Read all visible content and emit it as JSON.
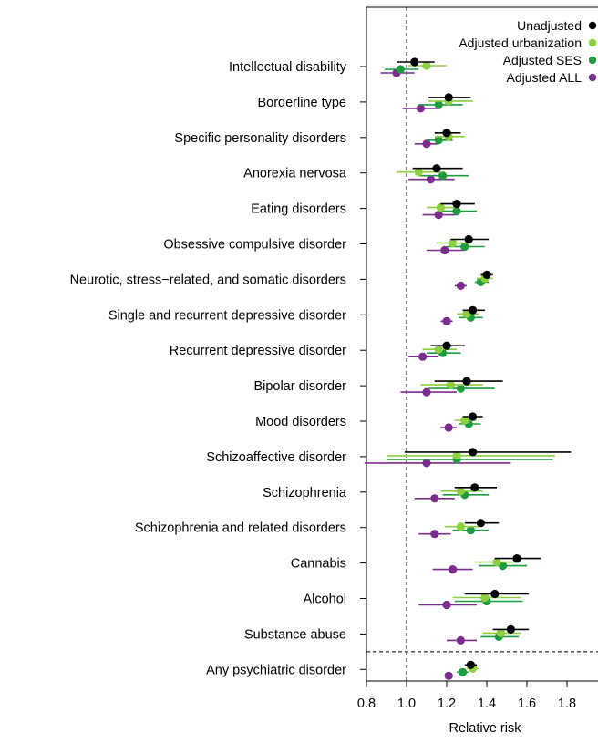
{
  "chart_data": {
    "type": "forest",
    "title": "",
    "xlabel": "Relative risk",
    "xlim": [
      0.8,
      2.0
    ],
    "xticks": [
      0.8,
      1.0,
      1.2,
      1.4,
      1.6,
      1.8
    ],
    "xtick_labels": [
      "0.8",
      "1.0",
      "1.2",
      "1.4",
      "1.6",
      "1.8"
    ],
    "reference_line": 1.0,
    "legend_position": "top-right",
    "categories": [
      "Intellectual disability",
      "Borderline type",
      "Specific personality disorders",
      "Anorexia nervosa",
      "Eating disorders",
      "Obsessive compulsive disorder",
      "Neurotic, stress−related, and somatic disorders",
      "Single and recurrent depressive disorder",
      "Recurrent depressive disorder",
      "Bipolar disorder",
      "Mood disorders",
      "Schizoaffective disorder",
      "Schizophrenia",
      "Schizophrenia and related disorders",
      "Cannabis",
      "Alcohol",
      "Substance abuse",
      "Any psychiatric disorder"
    ],
    "series": [
      {
        "name": "Unadjusted",
        "color": "#000000",
        "estimates": [
          1.04,
          1.21,
          1.2,
          1.15,
          1.25,
          1.31,
          1.4,
          1.33,
          1.2,
          1.3,
          1.33,
          1.33,
          1.34,
          1.37,
          1.55,
          1.44,
          1.52,
          1.32
        ],
        "lower": [
          0.95,
          1.11,
          1.14,
          1.03,
          1.17,
          1.22,
          1.37,
          1.28,
          1.12,
          1.14,
          1.28,
          0.99,
          1.24,
          1.29,
          1.44,
          1.29,
          1.43,
          1.29
        ],
        "upper": [
          1.14,
          1.32,
          1.27,
          1.28,
          1.34,
          1.41,
          1.43,
          1.39,
          1.29,
          1.48,
          1.38,
          1.82,
          1.45,
          1.46,
          1.67,
          1.61,
          1.61,
          1.35
        ]
      },
      {
        "name": "Adjusted urbanization",
        "color": "#8ccf3f",
        "estimates": [
          1.1,
          1.21,
          1.21,
          1.06,
          1.17,
          1.23,
          1.39,
          1.3,
          1.16,
          1.22,
          1.29,
          1.25,
          1.27,
          1.27,
          1.45,
          1.39,
          1.47,
          1.33
        ],
        "lower": [
          1.01,
          1.11,
          1.14,
          0.95,
          1.1,
          1.15,
          1.35,
          1.25,
          1.08,
          1.07,
          1.24,
          0.9,
          1.17,
          1.19,
          1.34,
          1.23,
          1.38,
          1.3
        ],
        "upper": [
          1.2,
          1.33,
          1.29,
          1.18,
          1.25,
          1.32,
          1.43,
          1.36,
          1.25,
          1.38,
          1.35,
          1.74,
          1.38,
          1.36,
          1.56,
          1.57,
          1.57,
          1.36
        ]
      },
      {
        "name": "Adjusted SES",
        "color": "#1e9a3f",
        "estimates": [
          0.97,
          1.16,
          1.16,
          1.18,
          1.25,
          1.29,
          1.37,
          1.32,
          1.18,
          1.27,
          1.31,
          1.25,
          1.29,
          1.32,
          1.48,
          1.4,
          1.46,
          1.28
        ],
        "lower": [
          0.89,
          1.06,
          1.1,
          1.06,
          1.17,
          1.2,
          1.34,
          1.26,
          1.1,
          1.11,
          1.26,
          0.9,
          1.18,
          1.23,
          1.36,
          1.24,
          1.37,
          1.25
        ],
        "upper": [
          1.06,
          1.28,
          1.23,
          1.31,
          1.35,
          1.39,
          1.41,
          1.38,
          1.27,
          1.44,
          1.37,
          1.73,
          1.41,
          1.41,
          1.6,
          1.58,
          1.56,
          1.31
        ]
      },
      {
        "name": "Adjusted ALL",
        "color": "#7b2d8e",
        "estimates": [
          0.95,
          1.07,
          1.1,
          1.12,
          1.16,
          1.19,
          1.27,
          1.2,
          1.08,
          1.1,
          1.21,
          1.1,
          1.14,
          1.14,
          1.23,
          1.2,
          1.27,
          1.21
        ],
        "lower": [
          0.87,
          0.98,
          1.04,
          1.01,
          1.08,
          1.1,
          1.24,
          1.17,
          1.01,
          0.97,
          1.17,
          0.79,
          1.04,
          1.06,
          1.13,
          1.06,
          1.2,
          1.19
        ],
        "upper": [
          1.04,
          1.17,
          1.16,
          1.24,
          1.25,
          1.29,
          1.3,
          1.23,
          1.16,
          1.25,
          1.25,
          1.52,
          1.24,
          1.22,
          1.33,
          1.35,
          1.35,
          1.23
        ]
      }
    ]
  }
}
